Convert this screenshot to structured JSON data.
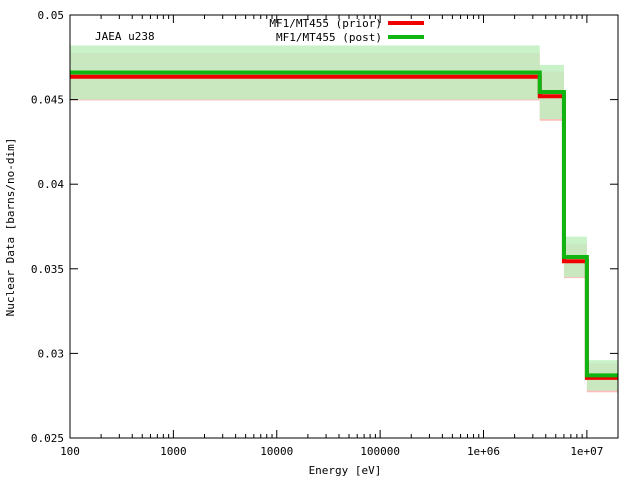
{
  "chart_data": {
    "type": "line",
    "title": "",
    "annotation": "JAEA u238",
    "xlabel": "Energy [eV]",
    "ylabel": "Nuclear Data [barns/no-dim]",
    "xscale": "log",
    "xlim": [
      100,
      20000000
    ],
    "ylim": [
      0.025,
      0.05
    ],
    "grid": false,
    "legend_position": "top-center",
    "x_ticks": [
      {
        "value": 100,
        "label": "100"
      },
      {
        "value": 1000,
        "label": "1000"
      },
      {
        "value": 10000,
        "label": "10000"
      },
      {
        "value": 100000,
        "label": "100000"
      },
      {
        "value": 1000000,
        "label": "1e+06"
      },
      {
        "value": 10000000,
        "label": "1e+07"
      }
    ],
    "y_ticks": [
      {
        "value": 0.025,
        "label": "0.025"
      },
      {
        "value": 0.03,
        "label": "0.03"
      },
      {
        "value": 0.035,
        "label": "0.035"
      },
      {
        "value": 0.04,
        "label": "0.04"
      },
      {
        "value": 0.045,
        "label": "0.045"
      },
      {
        "value": 0.05,
        "label": "0.05"
      }
    ],
    "bin_edges": [
      100,
      3500000,
      6000000,
      10000000,
      20000000
    ],
    "series": [
      {
        "name": "MF1/MT455 (prior)",
        "color": "#ee0000",
        "band_color": "#ffbbbb",
        "values": [
          0.04635,
          0.0452,
          0.03545,
          0.02855
        ],
        "uncertainty": [
          0.0014,
          0.00145,
          0.001,
          0.00085
        ]
      },
      {
        "name": "MF1/MT455 (post)",
        "color": "#11b511",
        "band_color": "#bff0bf",
        "values": [
          0.0466,
          0.04545,
          0.0357,
          0.0287
        ],
        "uncertainty": [
          0.0016,
          0.0016,
          0.0012,
          0.0009
        ]
      }
    ]
  }
}
